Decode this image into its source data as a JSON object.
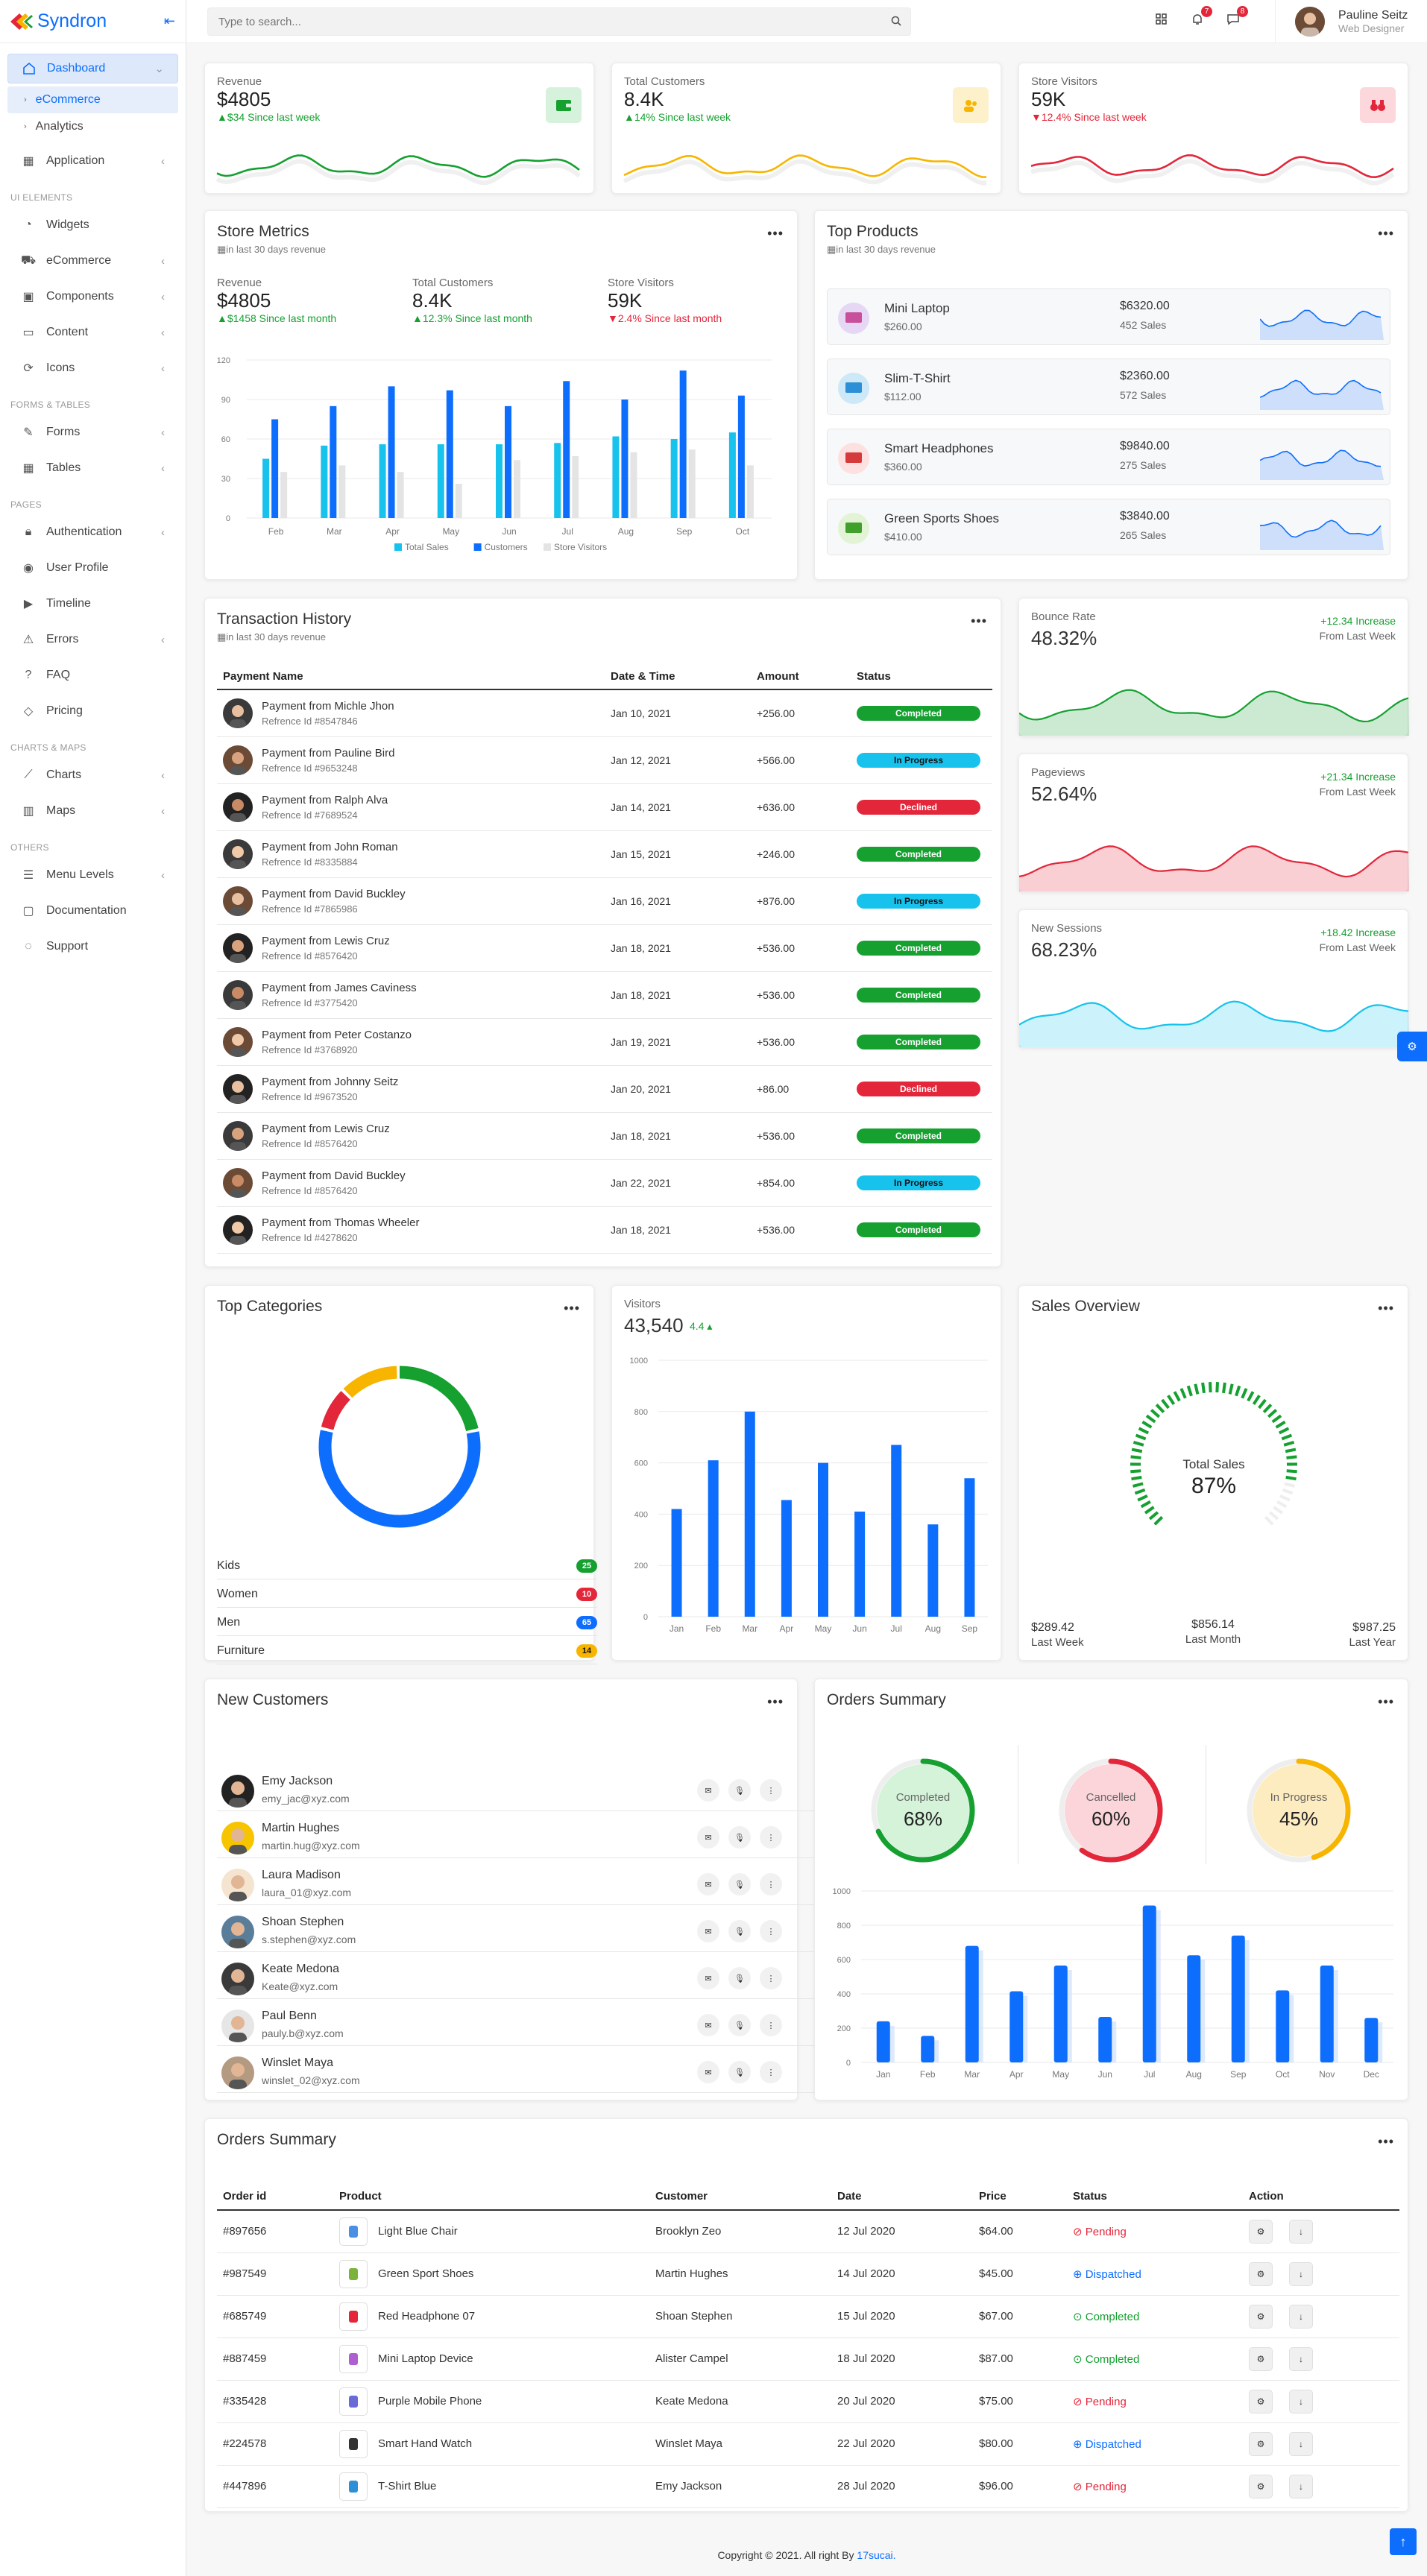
{
  "brand": {
    "name": "Syndron",
    "accent": "#0d6efd"
  },
  "search": {
    "placeholder": "Type to search..."
  },
  "topbar": {
    "notif_count": "7",
    "msg_count": "8",
    "user_name": "Pauline Seitz",
    "user_role": "Web Designer"
  },
  "sidebar": {
    "dashboard": "Dashboard",
    "sub": [
      "eCommerce",
      "Analytics"
    ],
    "application": "Application",
    "sec_ui": "UI ELEMENTS",
    "ui": [
      "Widgets",
      "eCommerce",
      "Components",
      "Content",
      "Icons"
    ],
    "sec_forms": "FORMS & TABLES",
    "forms": [
      "Forms",
      "Tables"
    ],
    "sec_pages": "PAGES",
    "pages": [
      "Authentication",
      "User Profile",
      "Timeline",
      "Errors",
      "FAQ",
      "Pricing"
    ],
    "sec_charts": "CHARTS & MAPS",
    "charts": [
      "Charts",
      "Maps"
    ],
    "sec_others": "OTHERS",
    "others": [
      "Menu Levels",
      "Documentation",
      "Support"
    ]
  },
  "kpis": [
    {
      "label": "Revenue",
      "value": "$4805",
      "change": "$34 Since last week",
      "dir": "up",
      "color": "#15a030"
    },
    {
      "label": "Total Customers",
      "value": "8.4K",
      "change": "14% Since last week",
      "dir": "up",
      "color": "#f7b500"
    },
    {
      "label": "Store Visitors",
      "value": "59K",
      "change": "12.4% Since last week",
      "dir": "down",
      "color": "#e3263a"
    }
  ],
  "store_metrics": {
    "title": "Store Metrics",
    "subtitle": "in last 30 days revenue",
    "stats": [
      {
        "label": "Revenue",
        "value": "$4805",
        "change": "$1458 Since last month",
        "dir": "up"
      },
      {
        "label": "Total Customers",
        "value": "8.4K",
        "change": "12.3% Since last month",
        "dir": "up"
      },
      {
        "label": "Store Visitors",
        "value": "59K",
        "change": "2.4% Since last month",
        "dir": "down"
      }
    ]
  },
  "chart_data": [
    {
      "type": "bar",
      "id": "store-metrics",
      "categories": [
        "Feb",
        "Mar",
        "Apr",
        "May",
        "Jun",
        "Jul",
        "Aug",
        "Sep",
        "Oct"
      ],
      "series": [
        {
          "name": "Total Sales",
          "color": "#17c2ec",
          "values": [
            45,
            55,
            56,
            56,
            56,
            57,
            62,
            60,
            65
          ]
        },
        {
          "name": "Customers",
          "color": "#0d6efd",
          "values": [
            75,
            85,
            100,
            97,
            85,
            104,
            90,
            112,
            93
          ]
        },
        {
          "name": "Store Visitors",
          "color": "#e4e4e4",
          "values": [
            35,
            40,
            35,
            26,
            44,
            47,
            50,
            52,
            40
          ]
        }
      ],
      "yticks": [
        0,
        30,
        60,
        90,
        120
      ],
      "ylim": [
        0,
        120
      ],
      "legend": "bottom"
    },
    {
      "type": "bar",
      "id": "visitors",
      "categories": [
        "Jan",
        "Feb",
        "Mar",
        "Apr",
        "May",
        "Jun",
        "Jul",
        "Aug",
        "Sep"
      ],
      "values": [
        420,
        610,
        800,
        455,
        600,
        410,
        670,
        360,
        540
      ],
      "yticks": [
        0,
        200,
        400,
        600,
        800,
        1000
      ],
      "ylim": [
        0,
        1000
      ],
      "color": "#0d6efd"
    },
    {
      "type": "bar",
      "id": "orders-summary",
      "categories": [
        "Jan",
        "Feb",
        "Mar",
        "Apr",
        "May",
        "Jun",
        "Jul",
        "Aug",
        "Sep",
        "Oct",
        "Nov",
        "Dec"
      ],
      "values": [
        240,
        155,
        680,
        415,
        565,
        265,
        915,
        625,
        740,
        420,
        565,
        260
      ],
      "yticks": [
        0,
        200,
        400,
        600,
        800,
        1000
      ],
      "ylim": [
        0,
        1000
      ],
      "color": "#0d6efd"
    },
    {
      "type": "pie",
      "id": "top-categories",
      "categories": [
        "Kids",
        "Women",
        "Men",
        "Furniture"
      ],
      "values": [
        25,
        10,
        65,
        14
      ],
      "colors": [
        "#15a030",
        "#e3263a",
        "#0d6efd",
        "#f7b500"
      ]
    }
  ],
  "top_products": {
    "title": "Top Products",
    "subtitle": "in last 30 days revenue",
    "items": [
      {
        "name": "Mini Laptop",
        "price": "$260.00",
        "revenue": "$6320.00",
        "sales": "452 Sales"
      },
      {
        "name": "Slim-T-Shirt",
        "price": "$112.00",
        "revenue": "$2360.00",
        "sales": "572 Sales"
      },
      {
        "name": "Smart Headphones",
        "price": "$360.00",
        "revenue": "$9840.00",
        "sales": "275 Sales"
      },
      {
        "name": "Green Sports Shoes",
        "price": "$410.00",
        "revenue": "$3840.00",
        "sales": "265 Sales"
      }
    ]
  },
  "transactions": {
    "title": "Transaction History",
    "subtitle": "in last 30 days revenue",
    "headers": [
      "Payment Name",
      "Date & Time",
      "Amount",
      "Status"
    ],
    "rows": [
      {
        "name": "Payment from Michle Jhon",
        "ref": "Refrence Id #8547846",
        "date": "Jan 10, 2021",
        "amount": "+256.00",
        "status": "Completed",
        "s": "c"
      },
      {
        "name": "Payment from Pauline Bird",
        "ref": "Refrence Id #9653248",
        "date": "Jan 12, 2021",
        "amount": "+566.00",
        "status": "In Progress",
        "s": "p"
      },
      {
        "name": "Payment from Ralph Alva",
        "ref": "Refrence Id #7689524",
        "date": "Jan 14, 2021",
        "amount": "+636.00",
        "status": "Declined",
        "s": "d"
      },
      {
        "name": "Payment from John Roman",
        "ref": "Refrence Id #8335884",
        "date": "Jan 15, 2021",
        "amount": "+246.00",
        "status": "Completed",
        "s": "c"
      },
      {
        "name": "Payment from David Buckley",
        "ref": "Refrence Id #7865986",
        "date": "Jan 16, 2021",
        "amount": "+876.00",
        "status": "In Progress",
        "s": "p"
      },
      {
        "name": "Payment from Lewis Cruz",
        "ref": "Refrence Id #8576420",
        "date": "Jan 18, 2021",
        "amount": "+536.00",
        "status": "Completed",
        "s": "c"
      },
      {
        "name": "Payment from James Caviness",
        "ref": "Refrence Id #3775420",
        "date": "Jan 18, 2021",
        "amount": "+536.00",
        "status": "Completed",
        "s": "c"
      },
      {
        "name": "Payment from Peter Costanzo",
        "ref": "Refrence Id #3768920",
        "date": "Jan 19, 2021",
        "amount": "+536.00",
        "status": "Completed",
        "s": "c"
      },
      {
        "name": "Payment from Johnny Seitz",
        "ref": "Refrence Id #9673520",
        "date": "Jan 20, 2021",
        "amount": "+86.00",
        "status": "Declined",
        "s": "d"
      },
      {
        "name": "Payment from Lewis Cruz",
        "ref": "Refrence Id #8576420",
        "date": "Jan 18, 2021",
        "amount": "+536.00",
        "status": "Completed",
        "s": "c"
      },
      {
        "name": "Payment from David Buckley",
        "ref": "Refrence Id #8576420",
        "date": "Jan 22, 2021",
        "amount": "+854.00",
        "status": "In Progress",
        "s": "p"
      },
      {
        "name": "Payment from Thomas Wheeler",
        "ref": "Refrence Id #4278620",
        "date": "Jan 18, 2021",
        "amount": "+536.00",
        "status": "Completed",
        "s": "c"
      }
    ]
  },
  "mini": [
    {
      "label": "Bounce Rate",
      "value": "48.32%",
      "inc": "+12.34 Increase",
      "from": "From Last Week",
      "color": "#15a030"
    },
    {
      "label": "Pageviews",
      "value": "52.64%",
      "inc": "+21.34 Increase",
      "from": "From Last Week",
      "color": "#e3263a"
    },
    {
      "label": "New Sessions",
      "value": "68.23%",
      "inc": "+18.42 Increase",
      "from": "From Last Week",
      "color": "#17c2ec"
    }
  ],
  "top_categories": {
    "title": "Top Categories",
    "rows": [
      {
        "name": "Kids",
        "count": "25",
        "color": "#15a030"
      },
      {
        "name": "Women",
        "count": "10",
        "color": "#e3263a"
      },
      {
        "name": "Men",
        "count": "65",
        "color": "#0d6efd"
      },
      {
        "name": "Furniture",
        "count": "14",
        "color": "#f7b500"
      }
    ]
  },
  "visitors": {
    "label": "Visitors",
    "value": "43,540",
    "change": "4.4"
  },
  "sales_overview": {
    "title": "Sales Overview",
    "gauge_label": "Total Sales",
    "gauge_value": "87%",
    "gauge_pct": 87,
    "stats": [
      {
        "v": "$289.42",
        "l": "Last Week"
      },
      {
        "v": "$856.14",
        "l": "Last Month"
      },
      {
        "v": "$987.25",
        "l": "Last Year"
      }
    ]
  },
  "new_customers": {
    "title": "New Customers",
    "rows": [
      {
        "name": "Emy Jackson",
        "email": "emy_jac@xyz.com"
      },
      {
        "name": "Martin Hughes",
        "email": "martin.hug@xyz.com"
      },
      {
        "name": "Laura Madison",
        "email": "laura_01@xyz.com"
      },
      {
        "name": "Shoan Stephen",
        "email": "s.stephen@xyz.com"
      },
      {
        "name": "Keate Medona",
        "email": "Keate@xyz.com"
      },
      {
        "name": "Paul Benn",
        "email": "pauly.b@xyz.com"
      },
      {
        "name": "Winslet Maya",
        "email": "winslet_02@xyz.com"
      }
    ]
  },
  "orders_summary_rings": {
    "title": "Orders Summary",
    "rings": [
      {
        "label": "Completed",
        "value": "68%",
        "pct": 68,
        "color": "#15a030",
        "fill": "#d4f3d9"
      },
      {
        "label": "Cancelled",
        "value": "60%",
        "pct": 60,
        "color": "#e3263a",
        "fill": "#fbd5d9"
      },
      {
        "label": "In Progress",
        "value": "45%",
        "pct": 45,
        "color": "#f7b500",
        "fill": "#fdecc0"
      }
    ]
  },
  "orders_table": {
    "title": "Orders Summary",
    "headers": [
      "Order id",
      "Product",
      "Customer",
      "Date",
      "Price",
      "Status",
      "Action"
    ],
    "rows": [
      {
        "id": "#897656",
        "product": "Light Blue Chair",
        "customer": "Brooklyn Zeo",
        "date": "12 Jul 2020",
        "price": "$64.00",
        "status": "Pending",
        "s": "pend"
      },
      {
        "id": "#987549",
        "product": "Green Sport Shoes",
        "customer": "Martin Hughes",
        "date": "14 Jul 2020",
        "price": "$45.00",
        "status": "Dispatched",
        "s": "dis"
      },
      {
        "id": "#685749",
        "product": "Red Headphone 07",
        "customer": "Shoan Stephen",
        "date": "15 Jul 2020",
        "price": "$67.00",
        "status": "Completed",
        "s": "comp"
      },
      {
        "id": "#887459",
        "product": "Mini Laptop Device",
        "customer": "Alister Campel",
        "date": "18 Jul 2020",
        "price": "$87.00",
        "status": "Completed",
        "s": "comp"
      },
      {
        "id": "#335428",
        "product": "Purple Mobile Phone",
        "customer": "Keate Medona",
        "date": "20 Jul 2020",
        "price": "$75.00",
        "status": "Pending",
        "s": "pend"
      },
      {
        "id": "#224578",
        "product": "Smart Hand Watch",
        "customer": "Winslet Maya",
        "date": "22 Jul 2020",
        "price": "$80.00",
        "status": "Dispatched",
        "s": "dis"
      },
      {
        "id": "#447896",
        "product": "T-Shirt Blue",
        "customer": "Emy Jackson",
        "date": "28 Jul 2020",
        "price": "$96.00",
        "status": "Pending",
        "s": "pend"
      }
    ]
  },
  "footer": {
    "text": "Copyright © 2021. All right By ",
    "link": "17sucai."
  }
}
